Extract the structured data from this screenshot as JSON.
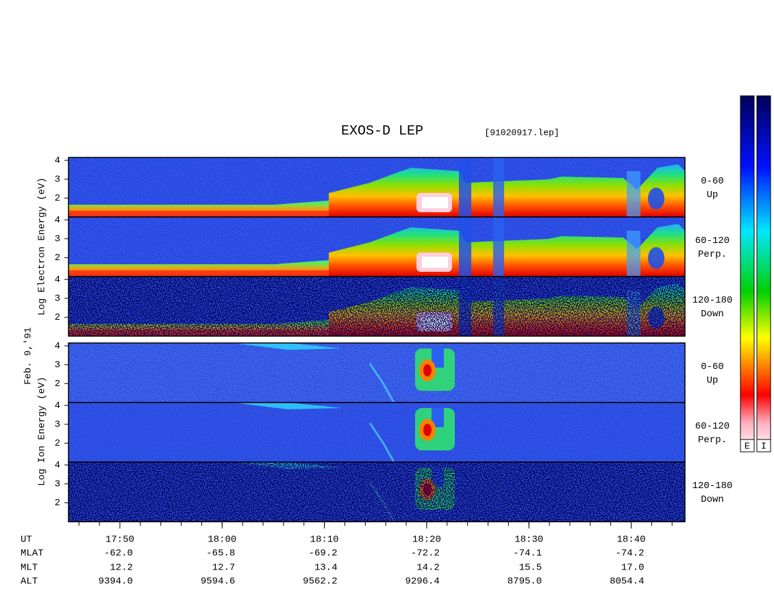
{
  "header": {
    "title": "EXOS-D LEP",
    "file": "[91020917.lep]"
  },
  "axis_labels": {
    "electron": "Log  Electron  Energy  (eV)",
    "date": "Feb. 9,'91",
    "ion": "Log  Ion  Energy  (eV)"
  },
  "panels": [
    {
      "species": "electron",
      "label": "0-60",
      "sublabel": "Up",
      "ylim": [
        1,
        4.15
      ],
      "yticks": [
        2,
        3,
        4
      ]
    },
    {
      "species": "electron",
      "label": "60-120",
      "sublabel": "Perp.",
      "ylim": [
        1,
        4.15
      ],
      "yticks": [
        2,
        3,
        4
      ]
    },
    {
      "species": "electron",
      "label": "120-180",
      "sublabel": "Down",
      "ylim": [
        1,
        4.15
      ],
      "yticks": [
        2,
        3,
        4
      ]
    },
    {
      "species": "ion",
      "label": "0-60",
      "sublabel": "Up",
      "ylim": [
        1,
        4.15
      ],
      "yticks": [
        2,
        3,
        4
      ]
    },
    {
      "species": "ion",
      "label": "60-120",
      "sublabel": "Perp.",
      "ylim": [
        1,
        4.15
      ],
      "yticks": [
        2,
        3,
        4
      ]
    },
    {
      "species": "ion",
      "label": "120-180",
      "sublabel": "Down",
      "ylim": [
        1,
        4.15
      ],
      "yticks": [
        2,
        3,
        4
      ]
    }
  ],
  "colorbars": [
    "E",
    "I"
  ],
  "x_axis": {
    "rows": [
      {
        "name": "UT",
        "values": [
          "17:50",
          "18:00",
          "18:10",
          "18:20",
          "18:30",
          "18:40"
        ]
      },
      {
        "name": "MLAT",
        "values": [
          "-62.0",
          "-65.8",
          "-69.2",
          "-72.2",
          "-74.1",
          "-74.2"
        ]
      },
      {
        "name": "MLT",
        "values": [
          "12.2",
          "12.7",
          "13.4",
          "14.2",
          "15.5",
          "17.0"
        ]
      },
      {
        "name": "ALT",
        "values": [
          "9394.0",
          "9594.6",
          "9562.2",
          "9296.4",
          "8795.0",
          "8054.4"
        ]
      }
    ]
  }
}
